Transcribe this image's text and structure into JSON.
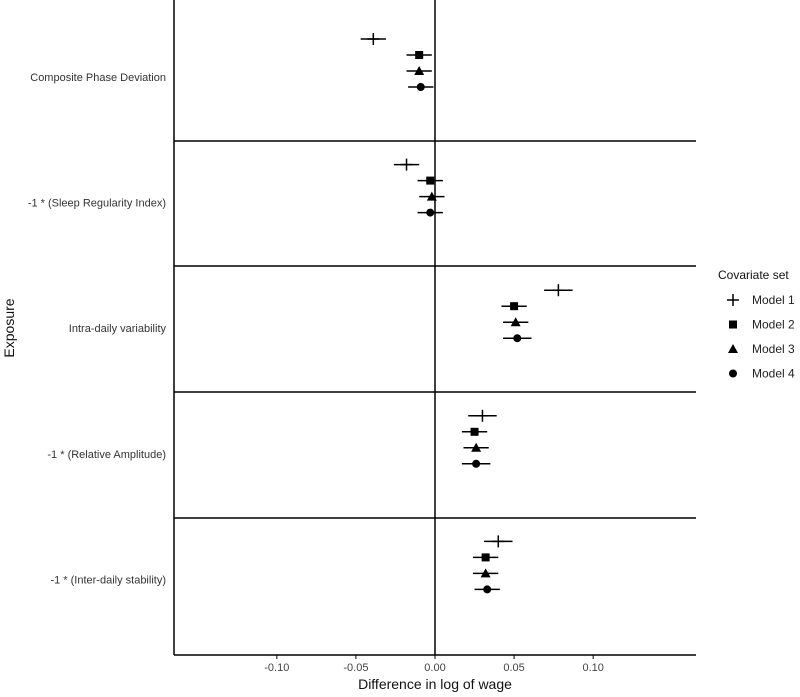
{
  "chart_data": {
    "type": "scatter",
    "subtype": "forest plot with horizontal error bars",
    "title": "",
    "xlabel": "Difference in log of wage",
    "ylabel": "Exposure",
    "xlim": [
      -0.165,
      0.165
    ],
    "xticks": [
      -0.1,
      -0.05,
      0.0,
      0.05,
      0.1
    ],
    "xtick_labels": [
      "-0.10",
      "-0.05",
      "0.00",
      "0.05",
      "0.10"
    ],
    "grid": false,
    "reference_line_x": 0,
    "panel_separators": true,
    "categories": [
      "Composite Phase Deviation",
      "-1 * (Sleep Regularity Index)",
      "Intra-daily variability",
      "-1 * (Relative Amplitude)",
      "-1 * (Inter-daily stability)"
    ],
    "legend": {
      "title": "Covariate set",
      "position": "right"
    },
    "series": [
      {
        "name": "Model 1",
        "marker": "plus",
        "estimate": [
          -0.039,
          -0.018,
          0.078,
          0.03,
          0.04
        ],
        "lower": [
          -0.047,
          -0.026,
          0.069,
          0.021,
          0.031
        ],
        "upper": [
          -0.031,
          -0.01,
          0.087,
          0.039,
          0.049
        ]
      },
      {
        "name": "Model 2",
        "marker": "square",
        "estimate": [
          -0.01,
          -0.003,
          0.05,
          0.025,
          0.032
        ],
        "lower": [
          -0.018,
          -0.011,
          0.042,
          0.017,
          0.024
        ],
        "upper": [
          -0.002,
          0.005,
          0.058,
          0.033,
          0.04
        ]
      },
      {
        "name": "Model 3",
        "marker": "triangle",
        "estimate": [
          -0.01,
          -0.002,
          0.051,
          0.026,
          0.032
        ],
        "lower": [
          -0.018,
          -0.01,
          0.043,
          0.018,
          0.024
        ],
        "upper": [
          -0.002,
          0.006,
          0.059,
          0.034,
          0.04
        ]
      },
      {
        "name": "Model 4",
        "marker": "circle",
        "estimate": [
          -0.009,
          -0.003,
          0.052,
          0.026,
          0.033
        ],
        "lower": [
          -0.017,
          -0.011,
          0.043,
          0.017,
          0.025
        ],
        "upper": [
          -0.001,
          0.005,
          0.061,
          0.035,
          0.041
        ]
      }
    ]
  }
}
